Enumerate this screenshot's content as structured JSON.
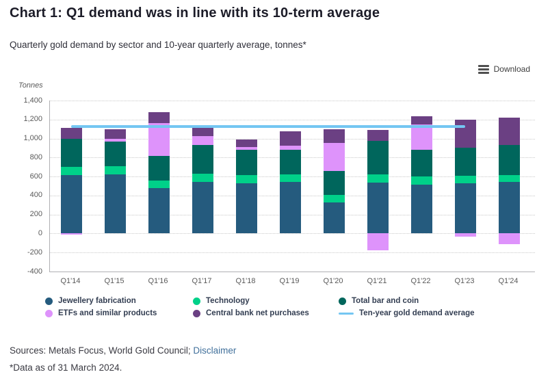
{
  "header": {
    "title": "Chart 1: Q1 demand was in line with its 10-term average",
    "subtitle": "Quarterly gold demand by sector and 10-year quarterly average, tonnes*"
  },
  "toolbar": {
    "download_label": "Download"
  },
  "chart_data": {
    "type": "bar",
    "stacked": true,
    "unit_label": "Tonnes",
    "categories": [
      "Q1'14",
      "Q1'15",
      "Q1'16",
      "Q1'17",
      "Q1'18",
      "Q1'19",
      "Q1'20",
      "Q1'21",
      "Q1'22",
      "Q1'23",
      "Q1'24"
    ],
    "series": [
      {
        "name": "Jewellery fabrication",
        "color": "#255b7e",
        "values": [
          615,
          620,
          480,
          545,
          530,
          540,
          325,
          535,
          515,
          530,
          540
        ]
      },
      {
        "name": "Technology",
        "color": "#00d189",
        "values": [
          85,
          90,
          75,
          85,
          85,
          85,
          80,
          85,
          85,
          80,
          75
        ]
      },
      {
        "name": "Total bar and coin",
        "color": "#00665c",
        "values": [
          300,
          255,
          260,
          305,
          270,
          260,
          255,
          355,
          285,
          295,
          315
        ]
      },
      {
        "name": "ETFs and similar products",
        "color": "#de93fb",
        "values": [
          -10,
          30,
          350,
          90,
          25,
          40,
          295,
          -180,
          265,
          -30,
          -115
        ]
      },
      {
        "name": "Central bank net purchases",
        "color": "#6b4083",
        "values": [
          115,
          105,
          115,
          105,
          80,
          150,
          140,
          115,
          85,
          295,
          290
        ]
      }
    ],
    "average_line": {
      "name": "Ten-year gold demand average",
      "color": "#74c6f2",
      "value": 1125,
      "span": [
        "Q1'14",
        "Q1'23"
      ]
    },
    "ylim": [
      -400,
      1400
    ],
    "ytick_step": 200,
    "ytick_labels": [
      "1,400",
      "1,200",
      "1,000",
      "800",
      "600",
      "400",
      "200",
      "0",
      "-200",
      "-400"
    ],
    "grid": "horizontal-dotted",
    "legend_position": "bottom"
  },
  "footer": {
    "sources_prefix": "Sources: Metals Focus, World Gold Council; ",
    "disclaimer_label": "Disclaimer",
    "note": "*Data as of 31 March 2024."
  }
}
